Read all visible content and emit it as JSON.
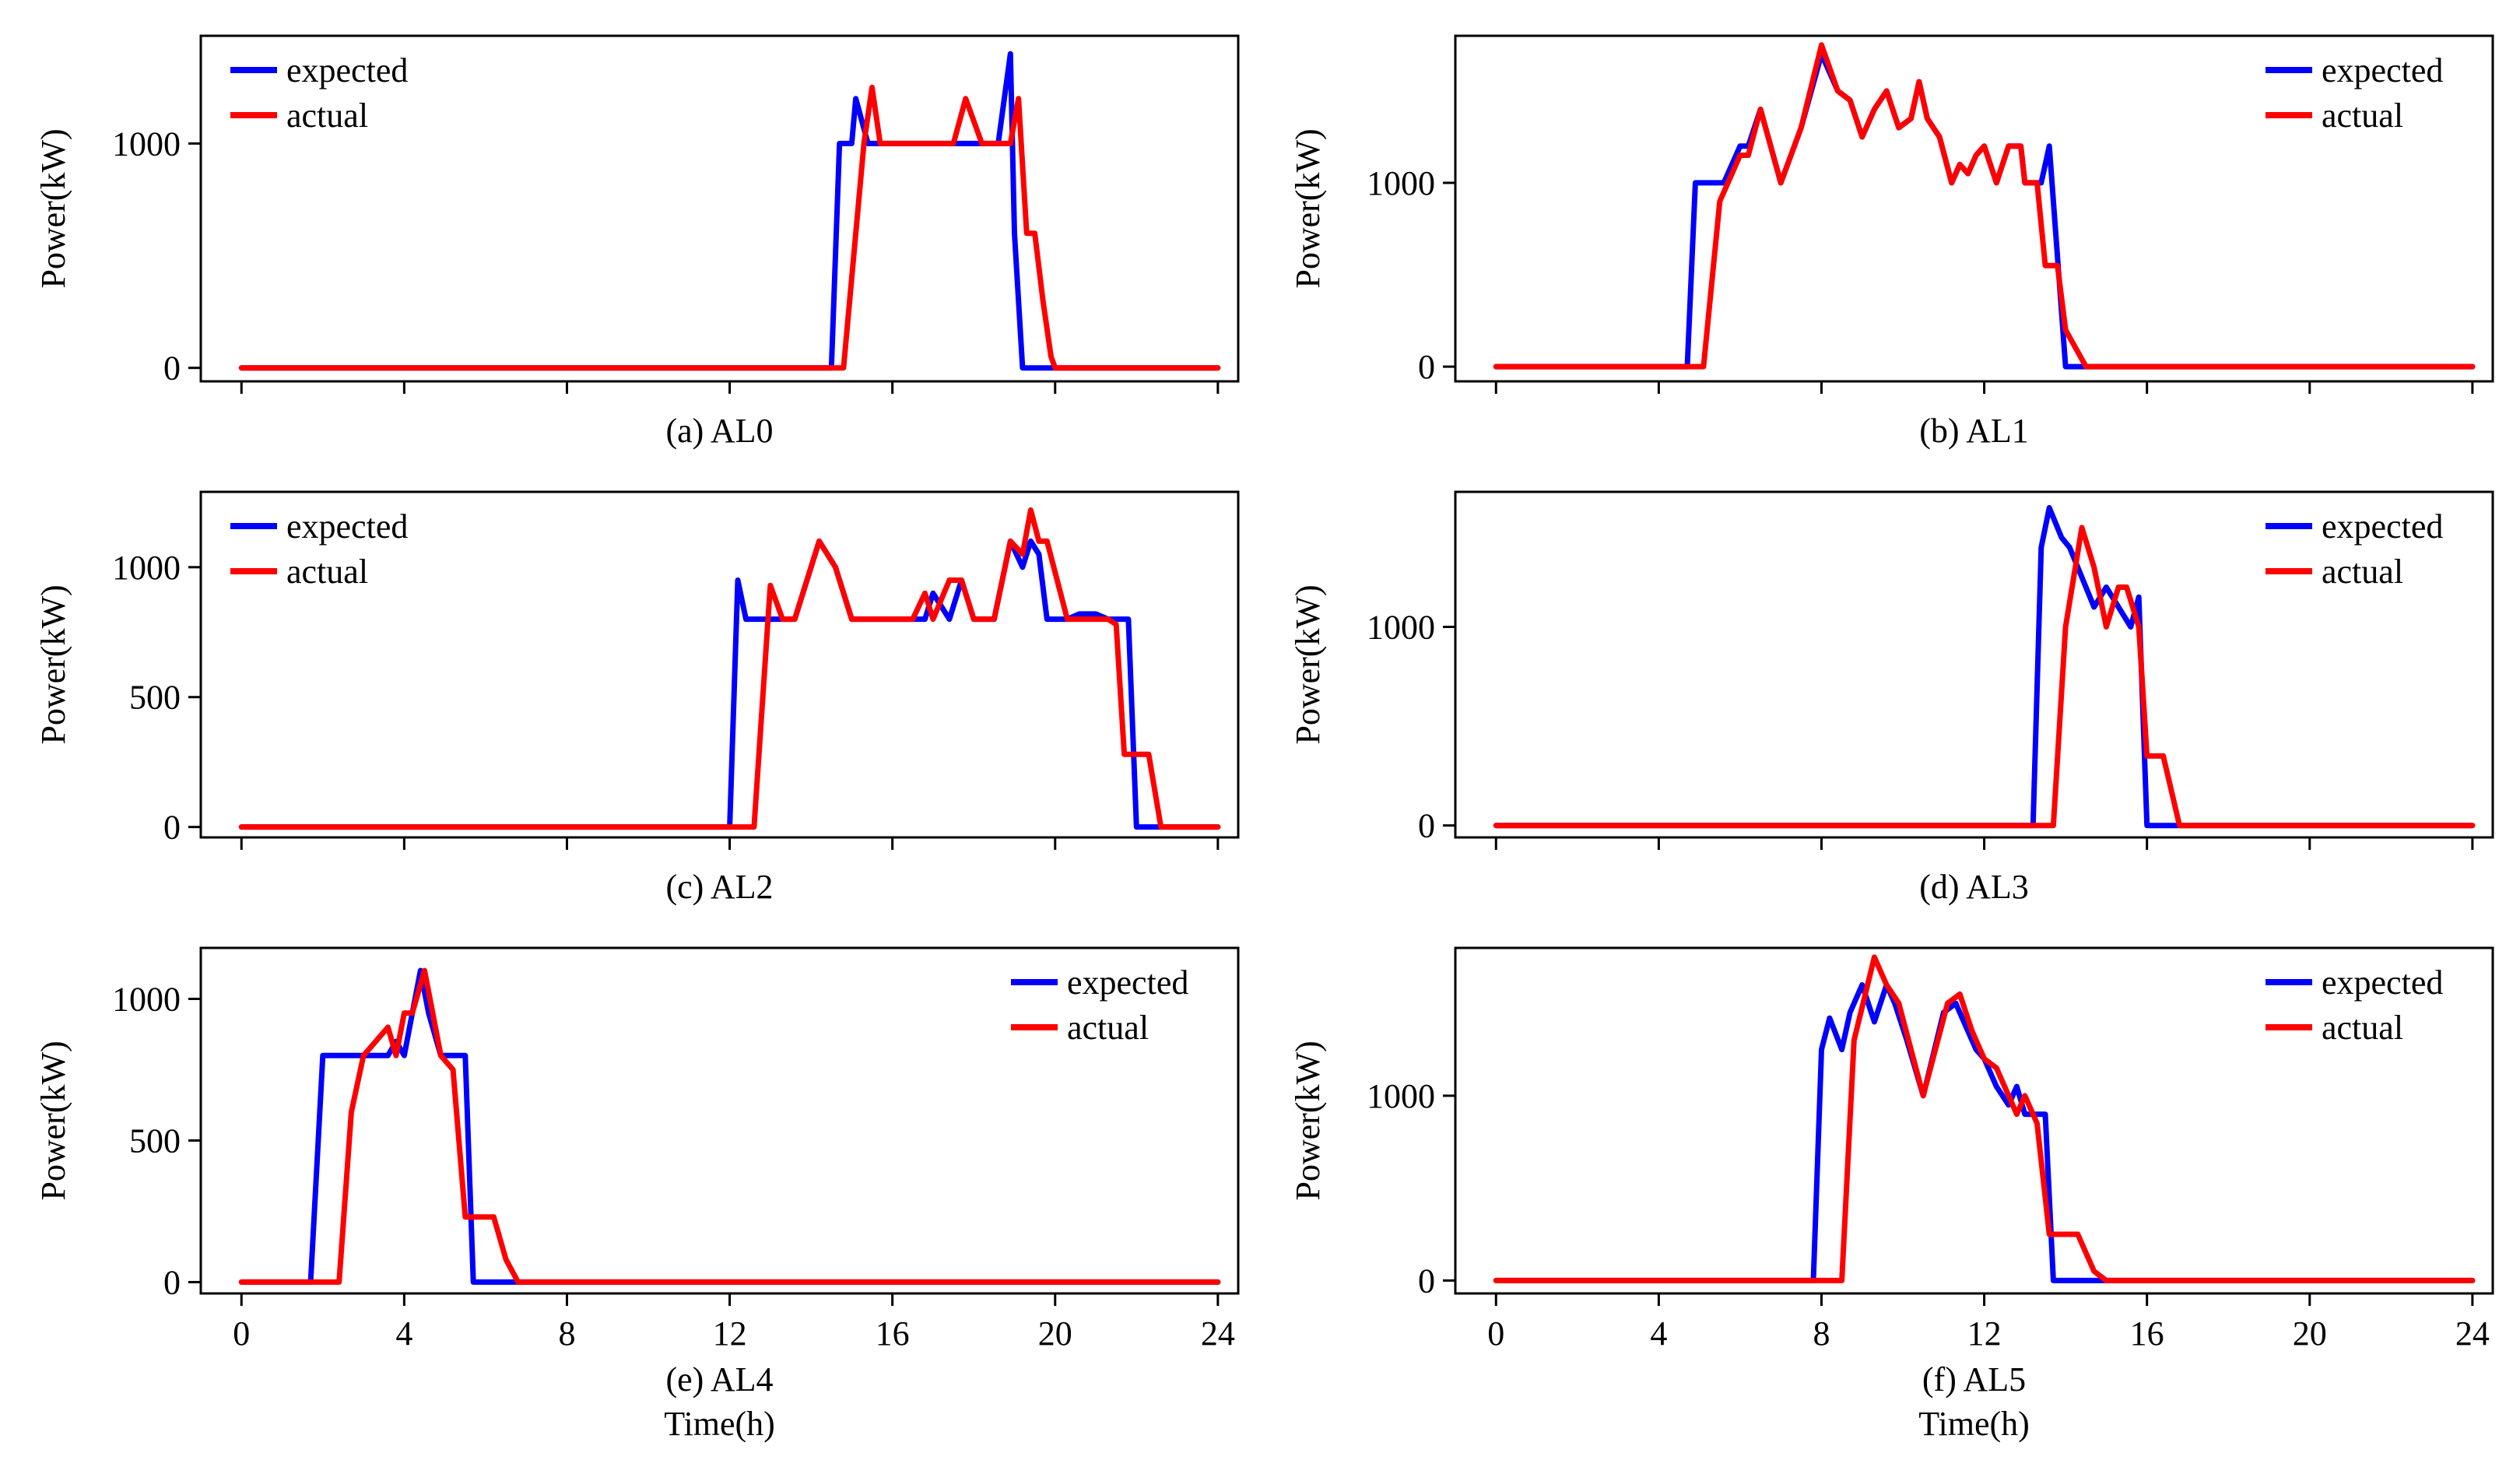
{
  "chart_data": [
    {
      "type": "line",
      "caption": "(a) AL0",
      "ylabel": "Power(kW)",
      "xlabel": "",
      "xlim": [
        -1,
        24.5
      ],
      "ylim": [
        -60,
        1480
      ],
      "yticks": [
        0,
        1000
      ],
      "xticks": [
        0,
        4,
        8,
        12,
        16,
        20,
        24
      ],
      "show_xtick_labels": false,
      "legend_position": "top-left",
      "series": [
        {
          "name": "expected",
          "color": "#0000ff",
          "x": [
            0,
            14.5,
            14.7,
            15.0,
            15.1,
            15.4,
            16,
            18,
            18.3,
            18.6,
            18.9,
            19.0,
            19.2,
            19.5,
            20,
            24
          ],
          "y": [
            0,
            0,
            1000,
            1000,
            1200,
            1000,
            1000,
            1000,
            1000,
            1000,
            1400,
            600,
            0,
            0,
            0,
            0
          ]
        },
        {
          "name": "actual",
          "color": "#ff0000",
          "x": [
            0,
            14.8,
            15.3,
            15.5,
            15.7,
            16,
            17,
            17.5,
            17.8,
            18.2,
            18.6,
            18.9,
            19.1,
            19.3,
            19.5,
            19.7,
            19.9,
            20,
            24
          ],
          "y": [
            0,
            0,
            1000,
            1250,
            1000,
            1000,
            1000,
            1000,
            1200,
            1000,
            1000,
            1000,
            1200,
            600,
            600,
            300,
            50,
            0,
            0
          ]
        }
      ]
    },
    {
      "type": "line",
      "caption": "(b) AL1",
      "ylabel": "Power(kW)",
      "xlabel": "",
      "xlim": [
        -1,
        24.5
      ],
      "ylim": [
        -80,
        1800
      ],
      "yticks": [
        0,
        1000
      ],
      "xticks": [
        0,
        4,
        8,
        12,
        16,
        20,
        24
      ],
      "show_xtick_labels": false,
      "legend_position": "top-right",
      "series": [
        {
          "name": "expected",
          "color": "#0000ff",
          "x": [
            0,
            4.7,
            4.9,
            5.6,
            6.0,
            6.2,
            6.5,
            7.0,
            7.5,
            8.0,
            8.4,
            8.7,
            9.0,
            9.3,
            9.6,
            9.9,
            10.2,
            10.4,
            10.6,
            10.9,
            11.2,
            11.4,
            11.6,
            11.8,
            12.0,
            12.3,
            12.6,
            12.9,
            13.0,
            13.4,
            13.6,
            14.0,
            14.5,
            24
          ],
          "y": [
            0,
            0,
            1000,
            1000,
            1200,
            1200,
            1400,
            1000,
            1300,
            1700,
            1500,
            1450,
            1250,
            1400,
            1500,
            1300,
            1350,
            1550,
            1350,
            1250,
            1000,
            1100,
            1050,
            1150,
            1200,
            1000,
            1200,
            1200,
            1000,
            1000,
            1200,
            0,
            0,
            0
          ]
        },
        {
          "name": "actual",
          "color": "#ff0000",
          "x": [
            0,
            5.1,
            5.5,
            6.0,
            6.2,
            6.5,
            7.0,
            7.5,
            8.0,
            8.4,
            8.7,
            9.0,
            9.3,
            9.6,
            9.9,
            10.2,
            10.4,
            10.6,
            10.9,
            11.2,
            11.4,
            11.6,
            11.8,
            12.0,
            12.3,
            12.6,
            12.9,
            13.0,
            13.3,
            13.5,
            13.8,
            14.0,
            14.5,
            24
          ],
          "y": [
            0,
            0,
            900,
            1150,
            1150,
            1400,
            1000,
            1300,
            1750,
            1500,
            1450,
            1250,
            1400,
            1500,
            1300,
            1350,
            1550,
            1350,
            1250,
            1000,
            1100,
            1050,
            1150,
            1200,
            1000,
            1200,
            1200,
            1000,
            1000,
            550,
            550,
            200,
            0,
            0
          ]
        }
      ]
    },
    {
      "type": "line",
      "caption": "(c) AL2",
      "ylabel": "Power(kW)",
      "xlabel": "",
      "xlim": [
        -1,
        24.5
      ],
      "ylim": [
        -40,
        1290
      ],
      "yticks": [
        0,
        500,
        1000
      ],
      "xticks": [
        0,
        4,
        8,
        12,
        16,
        20,
        24
      ],
      "show_xtick_labels": false,
      "legend_position": "top-left",
      "series": [
        {
          "name": "expected",
          "color": "#0000ff",
          "x": [
            0,
            12.0,
            12.2,
            12.4,
            12.8,
            13.2,
            13.6,
            14.2,
            14.6,
            15.0,
            16.0,
            16.5,
            16.8,
            17.0,
            17.4,
            17.7,
            18.0,
            18.5,
            18.9,
            19.2,
            19.4,
            19.6,
            19.8,
            20.3,
            20.6,
            21.0,
            21.3,
            21.6,
            21.8,
            22.0,
            22.3,
            22.7,
            23,
            24
          ],
          "y": [
            0,
            0,
            950,
            800,
            800,
            800,
            800,
            1100,
            1000,
            800,
            800,
            800,
            800,
            900,
            800,
            950,
            800,
            800,
            1100,
            1000,
            1100,
            1050,
            800,
            800,
            820,
            820,
            800,
            800,
            800,
            0,
            0,
            0,
            0,
            0
          ]
        },
        {
          "name": "actual",
          "color": "#ff0000",
          "x": [
            0,
            12.6,
            13.0,
            13.3,
            13.6,
            14.2,
            14.6,
            15.0,
            16.0,
            16.5,
            16.8,
            17.0,
            17.4,
            17.7,
            18.0,
            18.5,
            18.9,
            19.2,
            19.4,
            19.6,
            19.8,
            20.3,
            20.6,
            21.0,
            21.3,
            21.5,
            21.7,
            22.0,
            22.3,
            22.6,
            23,
            24
          ],
          "y": [
            0,
            0,
            930,
            800,
            800,
            1100,
            1000,
            800,
            800,
            800,
            900,
            800,
            950,
            950,
            800,
            800,
            1100,
            1050,
            1220,
            1100,
            1100,
            800,
            800,
            800,
            800,
            780,
            280,
            280,
            280,
            0,
            0,
            0
          ]
        }
      ]
    },
    {
      "type": "line",
      "caption": "(d) AL3",
      "ylabel": "Power(kW)",
      "xlabel": "",
      "xlim": [
        -1,
        24.5
      ],
      "ylim": [
        -60,
        1680
      ],
      "yticks": [
        0,
        1000
      ],
      "xticks": [
        0,
        4,
        8,
        12,
        16,
        20,
        24
      ],
      "show_xtick_labels": false,
      "legend_position": "top-right",
      "series": [
        {
          "name": "expected",
          "color": "#0000ff",
          "x": [
            0,
            13.2,
            13.4,
            13.6,
            13.9,
            14.1,
            14.4,
            14.7,
            15.0,
            15.3,
            15.6,
            15.8,
            16.0,
            16.3,
            17.0,
            24
          ],
          "y": [
            0,
            0,
            1400,
            1600,
            1450,
            1400,
            1250,
            1100,
            1200,
            1100,
            1000,
            1150,
            0,
            0,
            0,
            0
          ]
        },
        {
          "name": "actual",
          "color": "#ff0000",
          "x": [
            0,
            13.7,
            14.0,
            14.4,
            14.7,
            15.0,
            15.3,
            15.5,
            15.8,
            16.0,
            16.4,
            16.8,
            17.0,
            24
          ],
          "y": [
            0,
            0,
            1000,
            1500,
            1300,
            1000,
            1200,
            1200,
            1000,
            350,
            350,
            0,
            0,
            0
          ]
        }
      ]
    },
    {
      "type": "line",
      "caption": "(e) AL4",
      "ylabel": "Power(kW)",
      "xlabel": "Time(h)",
      "xlim": [
        -1,
        24.5
      ],
      "ylim": [
        -40,
        1180
      ],
      "yticks": [
        0,
        500,
        1000
      ],
      "xticks": [
        0,
        4,
        8,
        12,
        16,
        20,
        24
      ],
      "show_xtick_labels": true,
      "legend_position": "top-right",
      "series": [
        {
          "name": "expected",
          "color": "#0000ff",
          "x": [
            0,
            1.7,
            2.0,
            2.5,
            3.0,
            3.3,
            3.6,
            3.8,
            4.0,
            4.2,
            4.4,
            4.6,
            4.9,
            5.2,
            5.5,
            5.7,
            6.0,
            7.0,
            24
          ],
          "y": [
            0,
            0,
            800,
            800,
            800,
            800,
            800,
            850,
            800,
            950,
            1100,
            950,
            800,
            800,
            800,
            0,
            0,
            0,
            0
          ]
        },
        {
          "name": "actual",
          "color": "#ff0000",
          "x": [
            0,
            2.4,
            2.7,
            3.0,
            3.3,
            3.6,
            3.8,
            4.0,
            4.2,
            4.5,
            4.7,
            4.9,
            5.2,
            5.5,
            5.9,
            6.2,
            6.5,
            6.8,
            7.0,
            24
          ],
          "y": [
            0,
            0,
            600,
            800,
            850,
            900,
            800,
            950,
            950,
            1100,
            950,
            800,
            750,
            230,
            230,
            230,
            80,
            0,
            0,
            0
          ]
        }
      ]
    },
    {
      "type": "line",
      "caption": "(f) AL5",
      "ylabel": "Power(kW)",
      "xlabel": "Time(h)",
      "xlim": [
        -1,
        24.5
      ],
      "ylim": [
        -70,
        1800
      ],
      "yticks": [
        0,
        1000
      ],
      "xticks": [
        0,
        4,
        8,
        12,
        16,
        20,
        24
      ],
      "show_xtick_labels": true,
      "legend_position": "top-right",
      "series": [
        {
          "name": "expected",
          "color": "#0000ff",
          "x": [
            0,
            7.8,
            8.0,
            8.2,
            8.5,
            8.7,
            9.0,
            9.3,
            9.6,
            9.8,
            10.1,
            10.5,
            11.0,
            11.3,
            11.5,
            11.8,
            12.0,
            12.3,
            12.6,
            12.8,
            13.0,
            13.2,
            13.5,
            13.7,
            14.0,
            15.0,
            24
          ],
          "y": [
            0,
            0,
            1250,
            1420,
            1250,
            1450,
            1600,
            1400,
            1600,
            1500,
            1300,
            1000,
            1450,
            1500,
            1400,
            1250,
            1200,
            1050,
            950,
            1050,
            900,
            900,
            900,
            0,
            0,
            0,
            0
          ]
        },
        {
          "name": "actual",
          "color": "#ff0000",
          "x": [
            0,
            8.5,
            8.8,
            9.3,
            9.6,
            9.9,
            10.2,
            10.5,
            10.8,
            11.1,
            11.4,
            11.7,
            12.0,
            12.3,
            12.6,
            12.8,
            13.0,
            13.3,
            13.6,
            13.9,
            14.3,
            14.7,
            15.0,
            24
          ],
          "y": [
            0,
            0,
            1300,
            1750,
            1600,
            1500,
            1250,
            1000,
            1250,
            1500,
            1550,
            1350,
            1200,
            1150,
            1000,
            900,
            1000,
            850,
            250,
            250,
            250,
            50,
            0,
            0
          ]
        }
      ]
    }
  ]
}
